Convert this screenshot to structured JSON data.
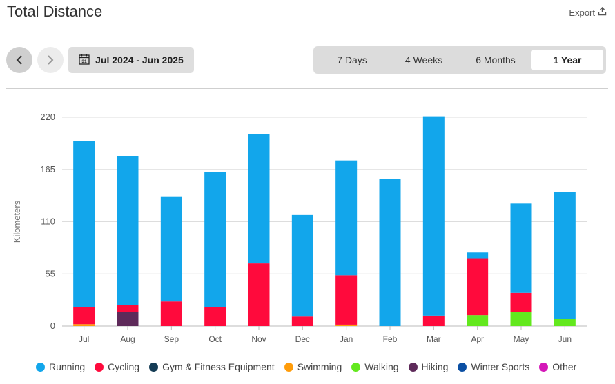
{
  "header": {
    "title": "Total Distance",
    "export_label": "Export"
  },
  "nav": {
    "date_range": "Jul 2024 - Jun 2025"
  },
  "ranges": [
    {
      "label": "7 Days",
      "active": false
    },
    {
      "label": "4 Weeks",
      "active": false
    },
    {
      "label": "6 Months",
      "active": false
    },
    {
      "label": "1 Year",
      "active": true
    }
  ],
  "colors": {
    "Running": "#12a6eb",
    "Cycling": "#ff0a3c",
    "Gym & Fitness Equipment": "#143c55",
    "Swimming": "#ff9c0a",
    "Walking": "#63e81e",
    "Hiking": "#5e2a5a",
    "Winter Sports": "#0b4fa3",
    "Other": "#d418b8",
    "grid": "#dddddd"
  },
  "chart_data": {
    "type": "bar",
    "stacked": true,
    "categories": [
      "Jul",
      "Aug",
      "Sep",
      "Oct",
      "Nov",
      "Dec",
      "Jan",
      "Feb",
      "Mar",
      "Apr",
      "May",
      "Jun"
    ],
    "ylabel": "Kilometers",
    "ylim": [
      0,
      220
    ],
    "yticks": [
      0,
      55,
      110,
      165,
      220
    ],
    "grid": true,
    "legend_position": "bottom",
    "series": [
      {
        "name": "Swimming",
        "values": [
          2,
          0,
          0,
          0,
          0,
          0,
          1.5,
          0,
          0,
          0,
          0,
          0
        ]
      },
      {
        "name": "Hiking",
        "values": [
          0,
          15,
          0,
          0,
          0,
          0,
          0,
          0,
          0,
          0,
          0,
          0
        ]
      },
      {
        "name": "Walking",
        "values": [
          0,
          0,
          0,
          0,
          0,
          0,
          0,
          0,
          0,
          11.5,
          15,
          7.5
        ]
      },
      {
        "name": "Cycling",
        "values": [
          18,
          7,
          26,
          20,
          66,
          10,
          52,
          0,
          11,
          60,
          20,
          0
        ]
      },
      {
        "name": "Running",
        "values": [
          175,
          157,
          110,
          142,
          136,
          107,
          121,
          155,
          210,
          6,
          94,
          134
        ]
      },
      {
        "name": "Gym & Fitness Equipment",
        "values": [
          0,
          0,
          0,
          0,
          0,
          0,
          0,
          0,
          0,
          0,
          0,
          0
        ]
      },
      {
        "name": "Winter Sports",
        "values": [
          0,
          0,
          0,
          0,
          0,
          0,
          0,
          0,
          0,
          0,
          0,
          0
        ]
      },
      {
        "name": "Other",
        "values": [
          0,
          0,
          0,
          0,
          0,
          0,
          0,
          0,
          0,
          0,
          0,
          0
        ]
      }
    ]
  },
  "legend": [
    "Running",
    "Cycling",
    "Gym & Fitness Equipment",
    "Swimming",
    "Walking",
    "Hiking",
    "Winter Sports",
    "Other"
  ]
}
